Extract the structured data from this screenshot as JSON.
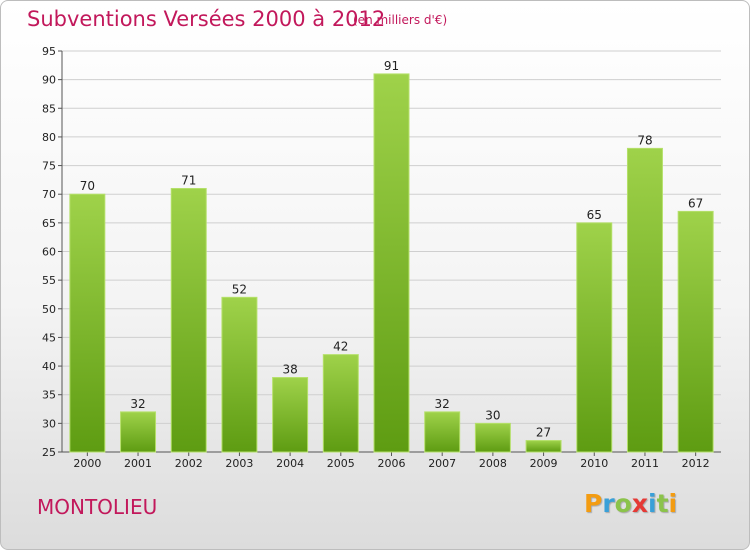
{
  "header": {
    "title": "Subventions Versées 2000 à 2012",
    "unit": "(en milliers d'€)"
  },
  "footer": {
    "commune": "MONTOLIEU",
    "logo_letters": [
      "P",
      "r",
      "o",
      "x",
      "i",
      "t",
      "i"
    ],
    "logo_colors": [
      "#f39c12",
      "#3aa0d8",
      "#8bc34a",
      "#e53935",
      "#3aa0d8",
      "#8bc34a",
      "#f39c12"
    ]
  },
  "colors": {
    "title": "#c2185b",
    "bar_top": "#9fd24a",
    "bar_bottom": "#5e9c12",
    "grid": "#cfcfcf"
  },
  "chart_data": {
    "type": "bar",
    "title": "Subventions Versées 2000 à 2012",
    "subtitle": "(en milliers d'€)",
    "categories": [
      "2000",
      "2001",
      "2002",
      "2003",
      "2004",
      "2005",
      "2006",
      "2007",
      "2008",
      "2009",
      "2010",
      "2011",
      "2012"
    ],
    "values": [
      70,
      32,
      71,
      52,
      38,
      42,
      91,
      32,
      30,
      27,
      65,
      78,
      67
    ],
    "ylim": [
      25,
      95
    ],
    "yticks": [
      25,
      30,
      35,
      40,
      45,
      50,
      55,
      60,
      65,
      70,
      75,
      80,
      85,
      90,
      95
    ],
    "grid": true,
    "data_labels": true,
    "xlabel": "",
    "ylabel": ""
  }
}
